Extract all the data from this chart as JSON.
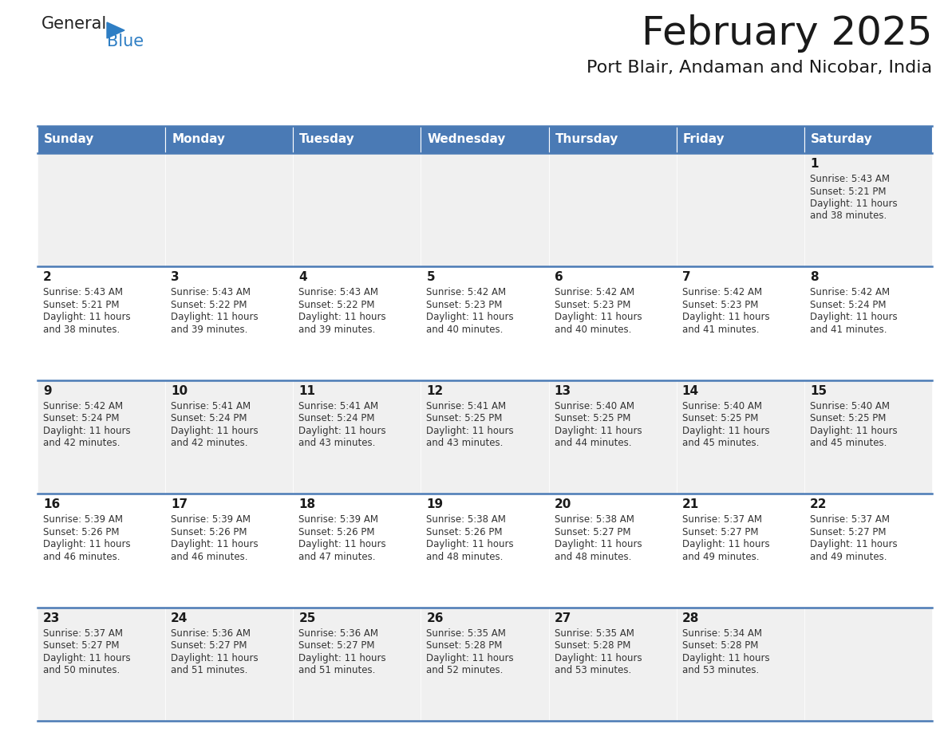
{
  "title": "February 2025",
  "subtitle": "Port Blair, Andaman and Nicobar, India",
  "header_bg": "#4a7ab5",
  "header_text_color": "#ffffff",
  "cell_bg_even": "#f0f0f0",
  "cell_bg_odd": "#ffffff",
  "cell_text_color": "#333333",
  "day_number_color": "#1a1a1a",
  "border_color": "#4a7ab5",
  "line_color": "#4a7ab5",
  "days_of_week": [
    "Sunday",
    "Monday",
    "Tuesday",
    "Wednesday",
    "Thursday",
    "Friday",
    "Saturday"
  ],
  "weeks": [
    [
      {
        "day": null,
        "sunrise": null,
        "sunset": null,
        "daylight": null
      },
      {
        "day": null,
        "sunrise": null,
        "sunset": null,
        "daylight": null
      },
      {
        "day": null,
        "sunrise": null,
        "sunset": null,
        "daylight": null
      },
      {
        "day": null,
        "sunrise": null,
        "sunset": null,
        "daylight": null
      },
      {
        "day": null,
        "sunrise": null,
        "sunset": null,
        "daylight": null
      },
      {
        "day": null,
        "sunrise": null,
        "sunset": null,
        "daylight": null
      },
      {
        "day": 1,
        "sunrise": "5:43 AM",
        "sunset": "5:21 PM",
        "daylight_h": "11 hours",
        "daylight_m": "38 minutes."
      }
    ],
    [
      {
        "day": 2,
        "sunrise": "5:43 AM",
        "sunset": "5:21 PM",
        "daylight_h": "11 hours",
        "daylight_m": "38 minutes."
      },
      {
        "day": 3,
        "sunrise": "5:43 AM",
        "sunset": "5:22 PM",
        "daylight_h": "11 hours",
        "daylight_m": "39 minutes."
      },
      {
        "day": 4,
        "sunrise": "5:43 AM",
        "sunset": "5:22 PM",
        "daylight_h": "11 hours",
        "daylight_m": "39 minutes."
      },
      {
        "day": 5,
        "sunrise": "5:42 AM",
        "sunset": "5:23 PM",
        "daylight_h": "11 hours",
        "daylight_m": "40 minutes."
      },
      {
        "day": 6,
        "sunrise": "5:42 AM",
        "sunset": "5:23 PM",
        "daylight_h": "11 hours",
        "daylight_m": "40 minutes."
      },
      {
        "day": 7,
        "sunrise": "5:42 AM",
        "sunset": "5:23 PM",
        "daylight_h": "11 hours",
        "daylight_m": "41 minutes."
      },
      {
        "day": 8,
        "sunrise": "5:42 AM",
        "sunset": "5:24 PM",
        "daylight_h": "11 hours",
        "daylight_m": "41 minutes."
      }
    ],
    [
      {
        "day": 9,
        "sunrise": "5:42 AM",
        "sunset": "5:24 PM",
        "daylight_h": "11 hours",
        "daylight_m": "42 minutes."
      },
      {
        "day": 10,
        "sunrise": "5:41 AM",
        "sunset": "5:24 PM",
        "daylight_h": "11 hours",
        "daylight_m": "42 minutes."
      },
      {
        "day": 11,
        "sunrise": "5:41 AM",
        "sunset": "5:24 PM",
        "daylight_h": "11 hours",
        "daylight_m": "43 minutes."
      },
      {
        "day": 12,
        "sunrise": "5:41 AM",
        "sunset": "5:25 PM",
        "daylight_h": "11 hours",
        "daylight_m": "43 minutes."
      },
      {
        "day": 13,
        "sunrise": "5:40 AM",
        "sunset": "5:25 PM",
        "daylight_h": "11 hours",
        "daylight_m": "44 minutes."
      },
      {
        "day": 14,
        "sunrise": "5:40 AM",
        "sunset": "5:25 PM",
        "daylight_h": "11 hours",
        "daylight_m": "45 minutes."
      },
      {
        "day": 15,
        "sunrise": "5:40 AM",
        "sunset": "5:25 PM",
        "daylight_h": "11 hours",
        "daylight_m": "45 minutes."
      }
    ],
    [
      {
        "day": 16,
        "sunrise": "5:39 AM",
        "sunset": "5:26 PM",
        "daylight_h": "11 hours",
        "daylight_m": "46 minutes."
      },
      {
        "day": 17,
        "sunrise": "5:39 AM",
        "sunset": "5:26 PM",
        "daylight_h": "11 hours",
        "daylight_m": "46 minutes."
      },
      {
        "day": 18,
        "sunrise": "5:39 AM",
        "sunset": "5:26 PM",
        "daylight_h": "11 hours",
        "daylight_m": "47 minutes."
      },
      {
        "day": 19,
        "sunrise": "5:38 AM",
        "sunset": "5:26 PM",
        "daylight_h": "11 hours",
        "daylight_m": "48 minutes."
      },
      {
        "day": 20,
        "sunrise": "5:38 AM",
        "sunset": "5:27 PM",
        "daylight_h": "11 hours",
        "daylight_m": "48 minutes."
      },
      {
        "day": 21,
        "sunrise": "5:37 AM",
        "sunset": "5:27 PM",
        "daylight_h": "11 hours",
        "daylight_m": "49 minutes."
      },
      {
        "day": 22,
        "sunrise": "5:37 AM",
        "sunset": "5:27 PM",
        "daylight_h": "11 hours",
        "daylight_m": "49 minutes."
      }
    ],
    [
      {
        "day": 23,
        "sunrise": "5:37 AM",
        "sunset": "5:27 PM",
        "daylight_h": "11 hours",
        "daylight_m": "50 minutes."
      },
      {
        "day": 24,
        "sunrise": "5:36 AM",
        "sunset": "5:27 PM",
        "daylight_h": "11 hours",
        "daylight_m": "51 minutes."
      },
      {
        "day": 25,
        "sunrise": "5:36 AM",
        "sunset": "5:27 PM",
        "daylight_h": "11 hours",
        "daylight_m": "51 minutes."
      },
      {
        "day": 26,
        "sunrise": "5:35 AM",
        "sunset": "5:28 PM",
        "daylight_h": "11 hours",
        "daylight_m": "52 minutes."
      },
      {
        "day": 27,
        "sunrise": "5:35 AM",
        "sunset": "5:28 PM",
        "daylight_h": "11 hours",
        "daylight_m": "53 minutes."
      },
      {
        "day": 28,
        "sunrise": "5:34 AM",
        "sunset": "5:28 PM",
        "daylight_h": "11 hours",
        "daylight_m": "53 minutes."
      },
      {
        "day": null,
        "sunrise": null,
        "sunset": null,
        "daylight_h": null,
        "daylight_m": null
      }
    ]
  ],
  "logo_general_color": "#222222",
  "logo_blue_color": "#2e7ec4",
  "logo_triangle_color": "#2e7ec4",
  "fig_width": 11.88,
  "fig_height": 9.18,
  "dpi": 100
}
